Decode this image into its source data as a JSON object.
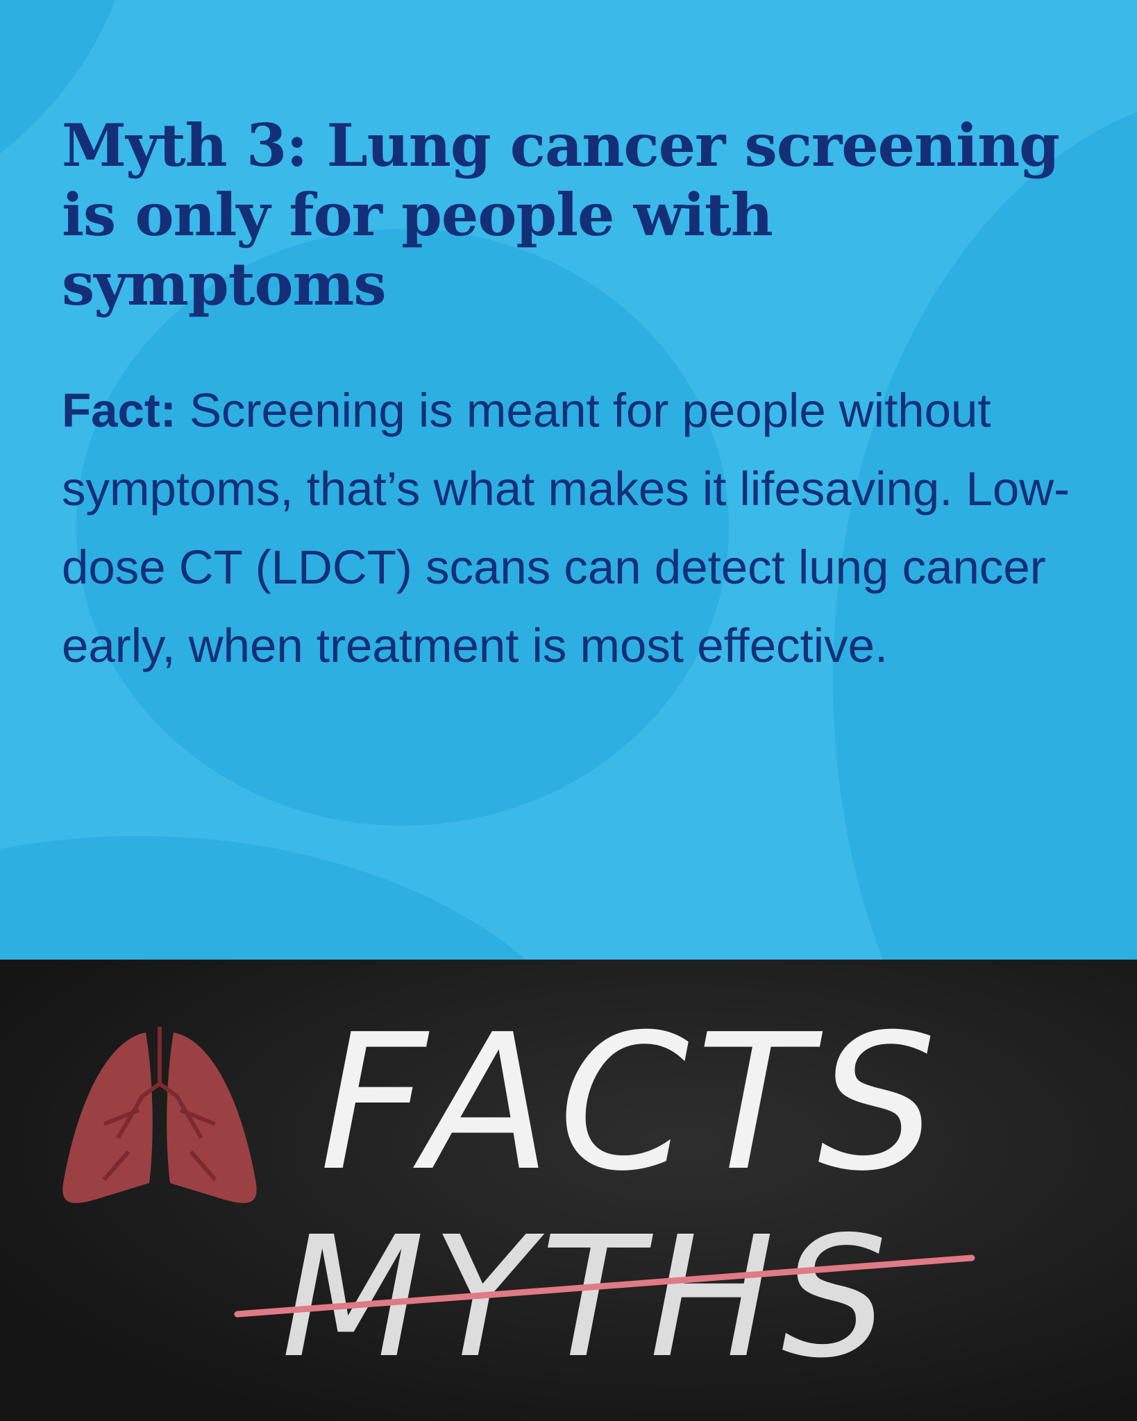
{
  "title": "Myth 3: Lung cancer screening is only for people with symptoms",
  "fact": {
    "label": "Fact:",
    "text": " Screening is meant for people without symptoms, that’s what makes it lifesaving. Low-dose CT (LDCT) scans can detect lung cancer early, when treatment is most effective."
  },
  "image": {
    "word_top": "FACTS",
    "word_bottom": "MYTHS",
    "icon": "lungs-icon"
  },
  "colors": {
    "background": "#3bb9e9",
    "text": "#142f78",
    "lungs": "#9b4143",
    "strike": "#e07a85"
  }
}
